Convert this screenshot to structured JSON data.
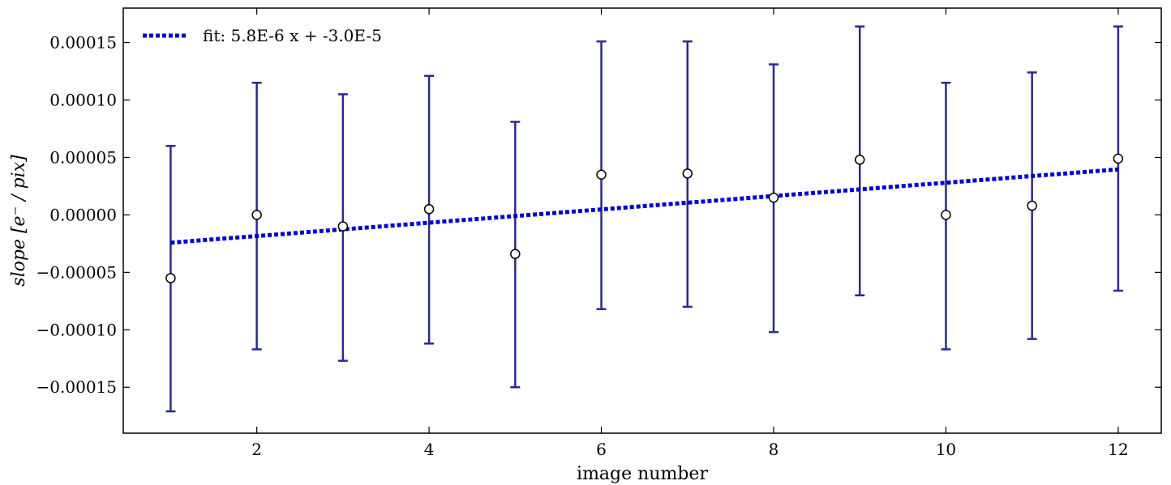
{
  "chart_data": {
    "type": "scatter",
    "xlabel": "image number",
    "ylabel": "slope [e⁻ / pix]",
    "xlim": [
      0.45,
      12.5
    ],
    "ylim": [
      -0.00019,
      0.00018
    ],
    "x_ticks": [
      2,
      4,
      6,
      8,
      10,
      12
    ],
    "x_tick_labels": [
      "2",
      "4",
      "6",
      "8",
      "10",
      "12"
    ],
    "y_ticks": [
      -0.00015,
      -0.0001,
      -5e-05,
      0,
      5e-05,
      0.0001,
      0.00015
    ],
    "y_tick_labels": [
      "−0.00015",
      "−0.00010",
      "−0.00005",
      "0.00000",
      "0.00005",
      "0.00010",
      "0.00015"
    ],
    "grid": false,
    "legend_position": "top-left",
    "series": [
      {
        "kind": "errorbar",
        "color": "#2b2a8a",
        "marker_face": "#ffffff",
        "x": [
          1,
          2,
          3,
          4,
          5,
          6,
          7,
          8,
          9,
          10,
          11,
          12
        ],
        "y": [
          -5.5e-05,
          0.0,
          -1e-05,
          5e-06,
          -3.4e-05,
          3.5e-05,
          3.6e-05,
          1.5e-05,
          4.8e-05,
          0.0,
          8e-06,
          4.9e-05
        ],
        "yerr_low": [
          -0.000171,
          -0.000117,
          -0.000127,
          -0.000112,
          -0.00015,
          -8.2e-05,
          -8e-05,
          -0.000102,
          -7e-05,
          -0.000117,
          -0.000108,
          -6.6e-05
        ],
        "yerr_high": [
          6e-05,
          0.000115,
          0.000105,
          0.000121,
          8.1e-05,
          0.000151,
          0.000151,
          0.000131,
          0.000164,
          0.000115,
          0.000124,
          0.000164
        ]
      },
      {
        "kind": "fit",
        "name": "fit: 5.8E-6 x + -3.0E-5",
        "color": "#0000cc",
        "slope": 5.8e-06,
        "intercept": -3e-05,
        "x_range": [
          1,
          12
        ]
      }
    ]
  }
}
